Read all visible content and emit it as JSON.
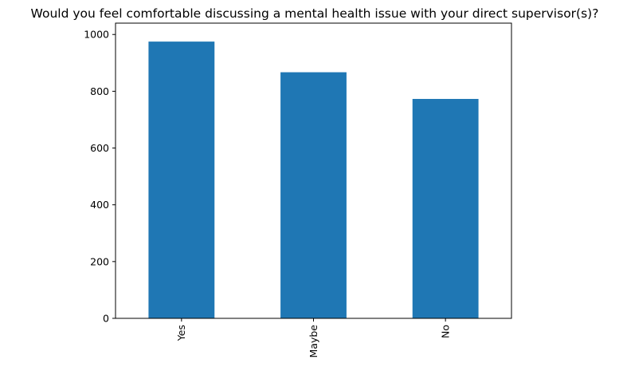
{
  "chart_data": {
    "type": "bar",
    "title": "Would you feel comfortable discussing a mental health issue with your direct supervisor(s)?",
    "xlabel": "",
    "ylabel": "",
    "categories": [
      "Yes",
      "Maybe",
      "No"
    ],
    "values": [
      975,
      867,
      773
    ],
    "ylim": [
      0,
      1040
    ],
    "yticks": [
      0,
      200,
      400,
      600,
      800,
      1000
    ],
    "bar_color": "#1f77b4",
    "grid": false,
    "legend": false
  }
}
